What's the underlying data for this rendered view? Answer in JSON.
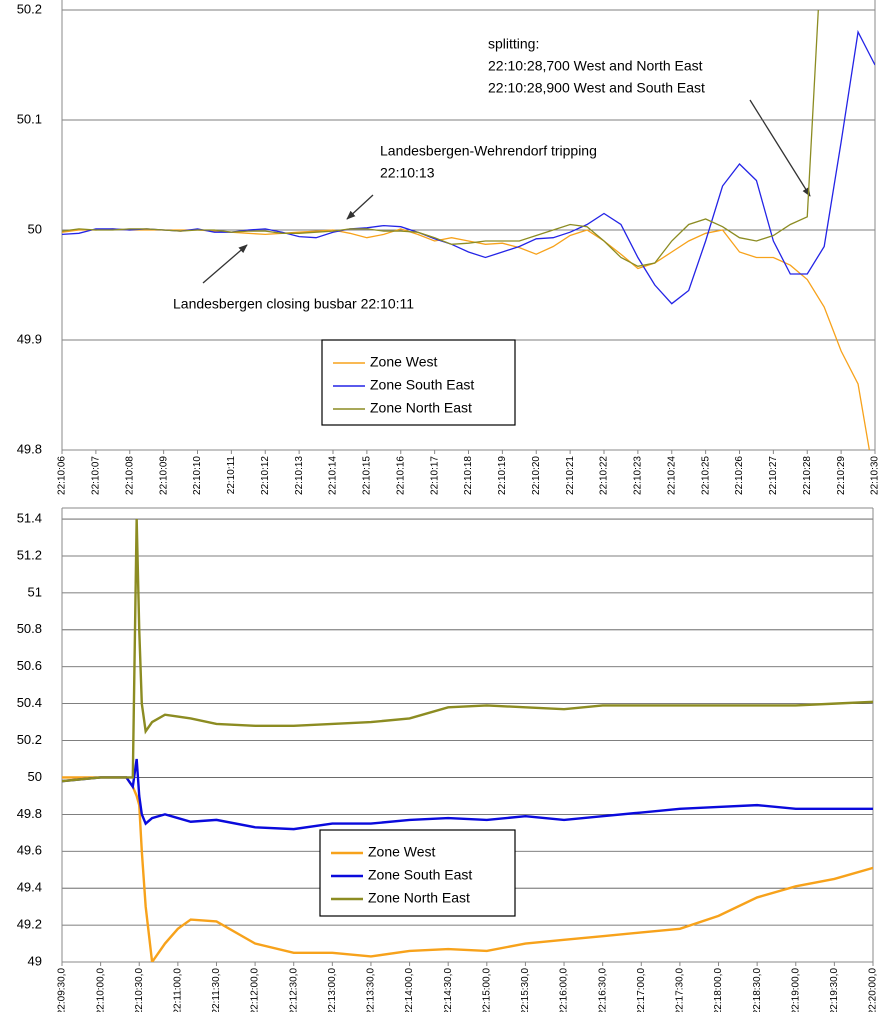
{
  "chart_data": [
    {
      "type": "line",
      "x": [
        79806,
        79806.5,
        79807,
        79807.5,
        79808,
        79808.5,
        79809,
        79809.5,
        79810,
        79810.5,
        79811,
        79811.5,
        79812,
        79812.5,
        79813,
        79813.5,
        79814,
        79814.5,
        79815,
        79815.5,
        79816,
        79816.5,
        79817,
        79817.5,
        79818,
        79818.5,
        79819,
        79819.5,
        79820,
        79820.5,
        79821,
        79821.5,
        79822,
        79822.5,
        79823,
        79823.5,
        79824,
        79824.5,
        79825,
        79825.5,
        79826,
        79826.5,
        79827,
        79827.5,
        79828,
        79828.5,
        79829,
        79829.5,
        79830
      ],
      "series": [
        {
          "name": "Zone West",
          "color": "#f7a21b",
          "values": [
            49.998,
            50,
            50,
            50.001,
            50,
            50,
            50,
            50,
            50,
            49.999,
            49.998,
            49.997,
            49.996,
            49.997,
            49.998,
            49.999,
            50,
            49.997,
            49.993,
            49.996,
            50.001,
            49.996,
            49.99,
            49.993,
            49.99,
            49.987,
            49.988,
            49.984,
            49.978,
            49.985,
            49.995,
            50,
            49.99,
            49.978,
            49.965,
            49.97,
            49.98,
            49.99,
            49.997,
            50,
            49.98,
            49.975,
            49.975,
            49.968,
            49.955,
            49.93,
            49.89,
            49.86,
            49.77
          ]
        },
        {
          "name": "Zone South East",
          "color": "#2424e6",
          "values": [
            49.996,
            49.997,
            50.001,
            50.001,
            50,
            50.001,
            50,
            49.999,
            50.001,
            49.998,
            49.998,
            50,
            50.001,
            49.998,
            49.994,
            49.993,
            49.998,
            50.001,
            50.002,
            50.004,
            50.003,
            49.998,
            49.992,
            49.987,
            49.98,
            49.975,
            49.98,
            49.985,
            49.992,
            49.993,
            49.998,
            50.005,
            50.015,
            50.005,
            49.975,
            49.95,
            49.933,
            49.945,
            49.99,
            50.04,
            50.06,
            50.045,
            49.99,
            49.96,
            49.96,
            49.985,
            50.08,
            50.18,
            50.15
          ]
        },
        {
          "name": "Zone North East",
          "color": "#8c8c22",
          "values": [
            49.999,
            50.001,
            50,
            50,
            50.001,
            50.001,
            50,
            49.999,
            50,
            50,
            49.998,
            49.999,
            49.999,
            49.997,
            49.997,
            49.998,
            49.999,
            50.001,
            50.001,
            49.999,
            49.999,
            49.998,
            49.993,
            49.987,
            49.988,
            49.99,
            49.99,
            49.99,
            49.995,
            50,
            50.005,
            50.003,
            49.99,
            49.975,
            49.967,
            49.97,
            49.99,
            50.005,
            50.01,
            50.003,
            49.993,
            49.99,
            49.995,
            50.005,
            50.012,
            50.3,
            null,
            null,
            null
          ]
        }
      ],
      "xlim": [
        79806,
        79830
      ],
      "xticks": [
        {
          "value": 79806,
          "label": "22:10:06"
        },
        {
          "value": 79807,
          "label": "22:10:07"
        },
        {
          "value": 79808,
          "label": "22:10:08"
        },
        {
          "value": 79809,
          "label": "22:10:09"
        },
        {
          "value": 79810,
          "label": "22:10:10"
        },
        {
          "value": 79811,
          "label": "22:10:11"
        },
        {
          "value": 79812,
          "label": "22:10:12"
        },
        {
          "value": 79813,
          "label": "22:10:13"
        },
        {
          "value": 79814,
          "label": "22:10:14"
        },
        {
          "value": 79815,
          "label": "22:10:15"
        },
        {
          "value": 79816,
          "label": "22:10:16"
        },
        {
          "value": 79817,
          "label": "22:10:17"
        },
        {
          "value": 79818,
          "label": "22:10:18"
        },
        {
          "value": 79819,
          "label": "22:10:19"
        },
        {
          "value": 79820,
          "label": "22:10:20"
        },
        {
          "value": 79821,
          "label": "22:10:21"
        },
        {
          "value": 79822,
          "label": "22:10:22"
        },
        {
          "value": 79823,
          "label": "22:10:23"
        },
        {
          "value": 79824,
          "label": "22:10:24"
        },
        {
          "value": 79825,
          "label": "22:10:25"
        },
        {
          "value": 79826,
          "label": "22:10:26"
        },
        {
          "value": 79827,
          "label": "22:10:27"
        },
        {
          "value": 79828,
          "label": "22:10:28"
        },
        {
          "value": 79829,
          "label": "22:10:29"
        },
        {
          "value": 79830,
          "label": "22:10:30"
        }
      ],
      "ylim": [
        49.8,
        50.2
      ],
      "yticks": [
        49.8,
        49.9,
        50,
        50.1,
        50.2
      ],
      "grid": true,
      "legend": "lower center",
      "annotations": [
        {
          "lines": [
            "splitting:",
            "22:10:28,700 West and North East",
            "22:10:28,900 West and South East"
          ]
        },
        {
          "lines": [
            "Landesbergen-Wehrendorf tripping",
            "22:10:13"
          ]
        },
        {
          "lines": [
            "Landesbergen closing busbar 22:10:11"
          ]
        }
      ]
    },
    {
      "type": "line",
      "x": [
        79770,
        79800,
        79820,
        79825,
        79828,
        79830,
        79832,
        79835,
        79840,
        79850,
        79860,
        79870,
        79890,
        79920,
        79950,
        79980,
        80010,
        80040,
        80070,
        80100,
        80130,
        80160,
        80190,
        80220,
        80250,
        80280,
        80310,
        80340,
        80370,
        80400
      ],
      "series": [
        {
          "name": "Zone West",
          "color": "#f7a21b",
          "values": [
            50,
            50,
            50,
            49.95,
            49.9,
            49.85,
            49.6,
            49.3,
            49.0,
            49.1,
            49.18,
            49.23,
            49.22,
            49.1,
            49.05,
            49.05,
            49.03,
            49.06,
            49.07,
            49.06,
            49.1,
            49.12,
            49.14,
            49.16,
            49.18,
            49.25,
            49.35,
            49.41,
            49.45,
            49.51
          ]
        },
        {
          "name": "Zone South East",
          "color": "#0a0adc",
          "values": [
            49.98,
            50,
            50,
            49.95,
            50.1,
            49.9,
            49.8,
            49.75,
            49.78,
            49.8,
            49.78,
            49.76,
            49.77,
            49.73,
            49.72,
            49.75,
            49.75,
            49.77,
            49.78,
            49.77,
            49.79,
            49.77,
            49.79,
            49.81,
            49.83,
            49.84,
            49.85,
            49.83,
            49.83,
            49.83
          ]
        },
        {
          "name": "Zone North East",
          "color": "#8c8c22",
          "values": [
            49.98,
            50,
            50,
            50,
            51.4,
            50.8,
            50.4,
            50.25,
            50.3,
            50.34,
            50.33,
            50.32,
            50.29,
            50.28,
            50.28,
            50.29,
            50.3,
            50.32,
            50.38,
            50.39,
            50.38,
            50.37,
            50.39,
            50.39,
            50.39,
            50.39,
            50.39,
            50.39,
            50.4,
            50.41
          ]
        }
      ],
      "xlim": [
        79770,
        80400
      ],
      "xticks": [
        {
          "value": 79770,
          "label": "22:09:30,0"
        },
        {
          "value": 79800,
          "label": "22:10:00,0"
        },
        {
          "value": 79830,
          "label": "22:10:30,0"
        },
        {
          "value": 79860,
          "label": "22:11:00,0"
        },
        {
          "value": 79890,
          "label": "22:11:30,0"
        },
        {
          "value": 79920,
          "label": "22:12:00,0"
        },
        {
          "value": 79950,
          "label": "22:12:30,0"
        },
        {
          "value": 79980,
          "label": "22:13:00,0"
        },
        {
          "value": 80010,
          "label": "22:13:30,0"
        },
        {
          "value": 80040,
          "label": "22:14:00,0"
        },
        {
          "value": 80070,
          "label": "22:14:30,0"
        },
        {
          "value": 80100,
          "label": "22:15:00,0"
        },
        {
          "value": 80130,
          "label": "22:15:30,0"
        },
        {
          "value": 80160,
          "label": "22:16:00,0"
        },
        {
          "value": 80190,
          "label": "22:16:30,0"
        },
        {
          "value": 80220,
          "label": "22:17:00,0"
        },
        {
          "value": 80250,
          "label": "22:17:30,0"
        },
        {
          "value": 80280,
          "label": "22:18:00,0"
        },
        {
          "value": 80310,
          "label": "22:18:30,0"
        },
        {
          "value": 80340,
          "label": "22:19:00,0"
        },
        {
          "value": 80370,
          "label": "22:19:30,0"
        },
        {
          "value": 80400,
          "label": "22:20:00,0"
        }
      ],
      "ylim": [
        49,
        51.46
      ],
      "yticks": [
        49,
        49.2,
        49.4,
        49.6,
        49.8,
        50,
        50.2,
        50.4,
        50.6,
        50.8,
        51,
        51.2,
        51.4
      ],
      "grid": true,
      "legend": "lower center"
    }
  ]
}
